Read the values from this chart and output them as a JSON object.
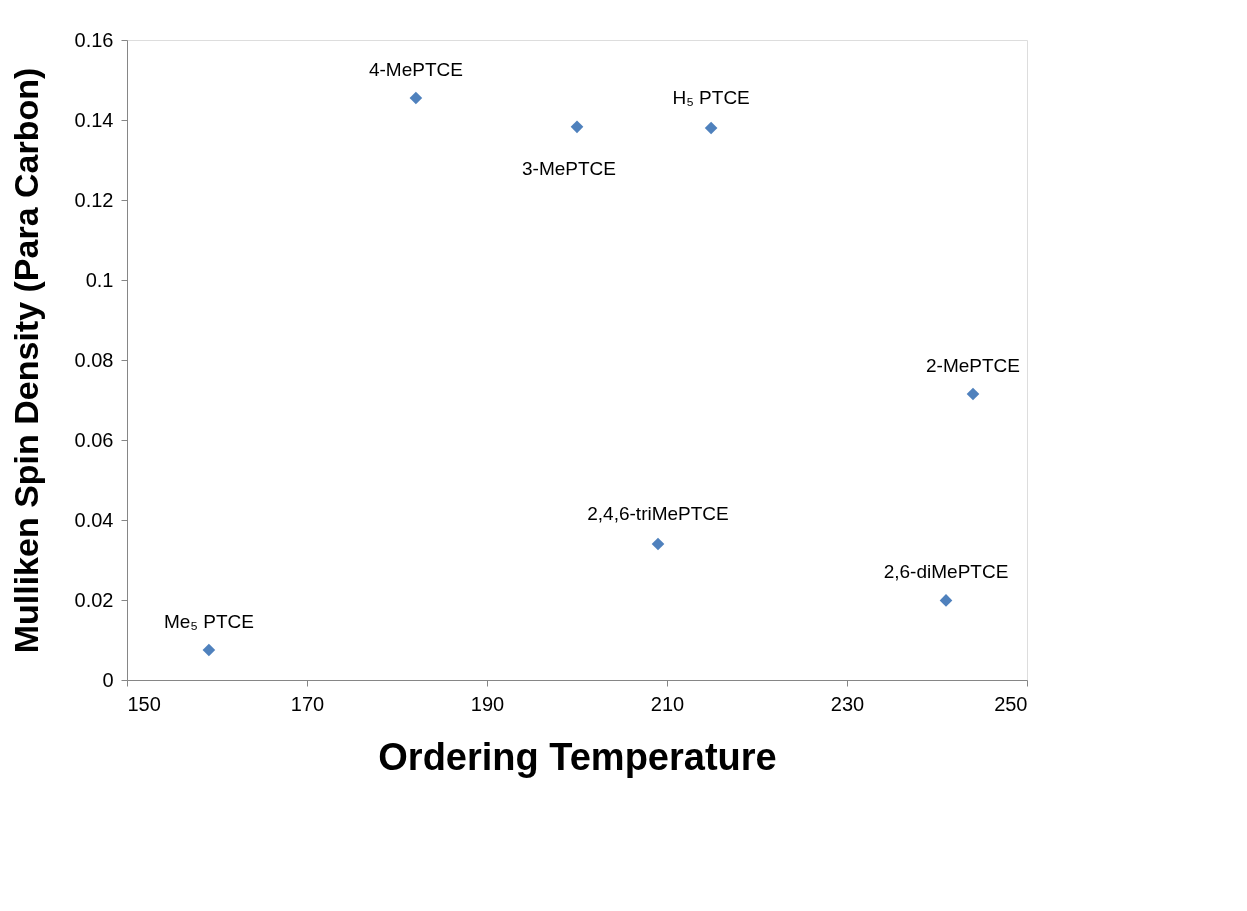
{
  "chart_data": {
    "type": "scatter",
    "xlabel": "Ordering Temperature",
    "ylabel": "Mulliken Spin Density (Para Carbon)",
    "x": [
      159.1,
      182.1,
      200,
      214.9,
      244,
      209,
      241
    ],
    "series": [
      {
        "color": "#4f81bd",
        "values": [
          0.0075,
          0.1455,
          0.1383,
          0.138,
          0.0715,
          0.034,
          0.0199
        ]
      }
    ],
    "xlim": [
      150,
      250
    ],
    "xticks": [
      150,
      170,
      190,
      210,
      230,
      250
    ],
    "ylim": [
      0,
      0.16
    ],
    "yticks": [
      0,
      {
        "value": 0.02,
        "label": "0.02"
      },
      {
        "value": 0.04,
        "label": "0.04"
      },
      {
        "value": 0.06,
        "label": "0.06"
      },
      {
        "value": 0.08,
        "label": "0.08"
      },
      {
        "value": 0.1,
        "label": "0.1"
      },
      {
        "value": 0.12,
        "label": "0.12"
      },
      {
        "value": 0.14,
        "label": "0.14"
      },
      {
        "value": 0.16,
        "label": "0.16"
      }
    ],
    "grid": false,
    "marker": "diamond",
    "annotations": [
      {
        "text": "Me₅ PTCE",
        "x": 159.1,
        "y": 0.0075
      },
      {
        "text": "4-MePTCE",
        "x": 182.1,
        "y": 0.1455
      },
      {
        "text": "3-MePTCE",
        "x": 200,
        "y": 0.1383
      },
      {
        "text": "H₅ PTCE",
        "x": 214.9,
        "y": 0.138
      },
      {
        "text": "2-MePTCE",
        "x": 244,
        "y": 0.0715
      },
      {
        "text": "2,4,6-triMePTCE",
        "x": 209,
        "y": 0.034
      },
      {
        "text": "2,6-diMePTCE",
        "x": 241,
        "y": 0.0199
      }
    ]
  }
}
